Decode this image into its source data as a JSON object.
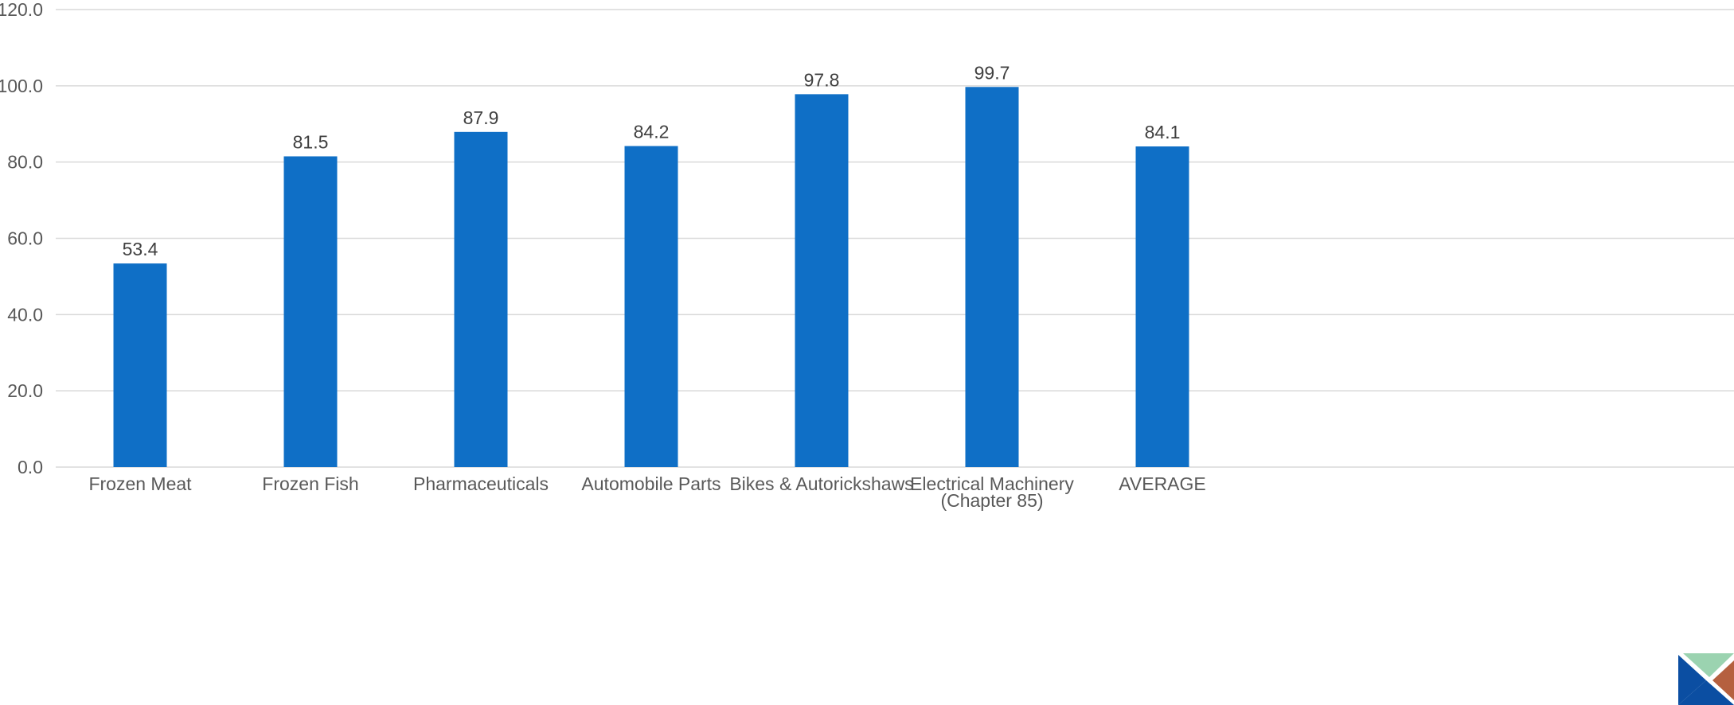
{
  "chart_data": {
    "type": "bar",
    "categories": [
      "Frozen Meat",
      "Frozen Fish",
      "Pharmaceuticals",
      "Automobile Parts",
      "Bikes & Autorickshaws",
      "Electrical Machinery (Chapter 85)",
      "AVERAGE"
    ],
    "category_lines": [
      [
        "Frozen Meat"
      ],
      [
        "Frozen Fish"
      ],
      [
        "Pharmaceuticals"
      ],
      [
        "Automobile Parts"
      ],
      [
        "Bikes & Autorickshaws"
      ],
      [
        "Electrical Machinery",
        "(Chapter 85)"
      ],
      [
        "AVERAGE"
      ]
    ],
    "values": [
      53.4,
      81.5,
      87.9,
      84.2,
      97.8,
      99.7,
      84.1
    ],
    "data_labels": [
      "53.4",
      "81.5",
      "87.9",
      "84.2",
      "97.8",
      "99.7",
      "84.1"
    ],
    "yticks": [
      "0.0",
      "20.0",
      "40.0",
      "60.0",
      "80.0",
      "100.0",
      "120.0"
    ],
    "ylim": [
      0,
      120
    ],
    "grid": true,
    "legend": "none",
    "colors": {
      "bar": "#0f6fc6",
      "grid": "#d9d9d9",
      "tick_text": "#595959",
      "label_text": "#404040"
    },
    "title": "",
    "xlabel": "",
    "ylabel": ""
  },
  "logo": {
    "icon": "corner-logo-icon",
    "colors": [
      "#0b4ea2",
      "#9bd3b0",
      "#b5603f",
      "#a3815f"
    ]
  }
}
